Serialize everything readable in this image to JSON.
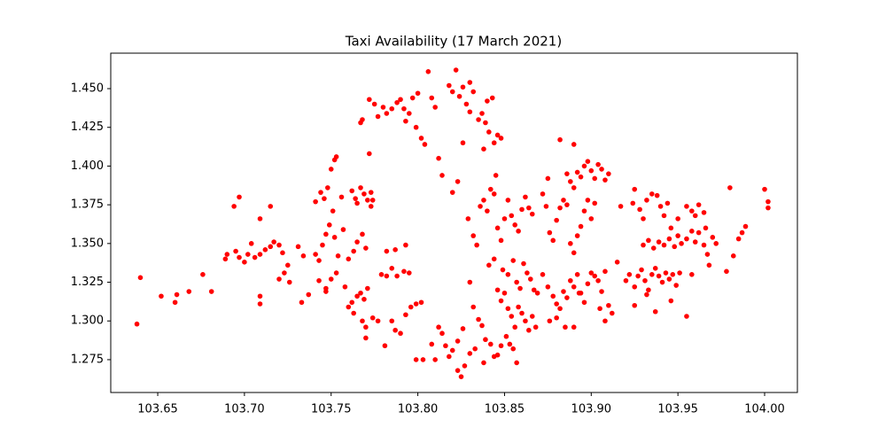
{
  "chart_data": {
    "type": "scatter",
    "title": "Taxi Availability (17 March 2021)",
    "color": "#ff0000",
    "xlim": [
      103.6229,
      104.0189
    ],
    "ylim": [
      1.2538,
      1.4729
    ],
    "xticks": [
      103.65,
      {
        "value": 103.7,
        "label": "103.70"
      },
      103.75,
      {
        "value": 103.8,
        "label": "103.80"
      },
      103.85,
      {
        "value": 103.9,
        "label": "103.90"
      },
      103.95,
      {
        "value": 104,
        "label": "104.00"
      }
    ],
    "yticks": [
      1.275,
      {
        "value": 1.3,
        "label": "1.300"
      },
      1.325,
      {
        "value": 1.35,
        "label": "1.350"
      },
      1.375,
      {
        "value": 1.4,
        "label": "1.400"
      },
      1.425,
      {
        "value": 1.45,
        "label": "1.450"
      }
    ],
    "x": [
      103.638,
      103.64,
      103.652,
      103.66,
      103.661,
      103.668,
      103.676,
      103.681,
      103.689,
      103.69,
      103.695,
      103.697,
      103.7,
      103.702,
      103.704,
      103.706,
      103.709,
      103.712,
      103.715,
      103.717,
      103.72,
      103.722,
      103.694,
      103.697,
      103.709,
      103.715,
      103.709,
      103.709,
      103.72,
      103.723,
      103.726,
      103.725,
      103.731,
      103.734,
      103.733,
      103.737,
      103.741,
      103.743,
      103.745,
      103.747,
      103.749,
      103.751,
      103.748,
      103.75,
      103.752,
      103.753,
      103.746,
      103.741,
      103.744,
      103.756,
      103.757,
      103.753,
      103.75,
      103.747,
      103.743,
      103.754,
      103.752,
      103.747,
      103.758,
      103.76,
      103.762,
      103.764,
      103.767,
      103.769,
      103.771,
      103.765,
      103.773,
      103.772,
      103.773,
      103.774,
      103.763,
      103.765,
      103.768,
      103.77,
      103.762,
      103.765,
      103.767,
      103.769,
      103.771,
      103.76,
      103.763,
      103.768,
      103.77,
      103.77,
      103.774,
      103.777,
      103.779,
      103.782,
      103.785,
      103.788,
      103.792,
      103.795,
      103.782,
      103.787,
      103.793,
      103.781,
      103.785,
      103.787,
      103.79,
      103.793,
      103.796,
      103.799,
      103.802,
      103.799,
      103.803,
      103.767,
      103.768,
      103.772,
      103.775,
      103.777,
      103.78,
      103.782,
      103.785,
      103.788,
      103.79,
      103.792,
      103.795,
      103.797,
      103.793,
      103.799,
      103.8,
      103.802,
      103.804,
      103.806,
      103.808,
      103.81,
      103.812,
      103.814,
      103.818,
      103.82,
      103.822,
      103.824,
      103.826,
      103.828,
      103.83,
      103.832,
      103.83,
      103.835,
      103.837,
      103.839,
      103.841,
      103.844,
      103.846,
      103.848,
      103.84,
      103.843,
      103.838,
      103.826,
      103.823,
      103.82,
      103.829,
      103.832,
      103.834,
      103.836,
      103.838,
      103.84,
      103.842,
      103.844,
      103.846,
      103.848,
      103.85,
      103.852,
      103.854,
      103.856,
      103.858,
      103.86,
      103.862,
      103.864,
      103.866,
      103.845,
      103.841,
      103.844,
      103.849,
      103.852,
      103.855,
      103.857,
      103.859,
      103.861,
      103.863,
      103.865,
      103.867,
      103.869,
      103.846,
      103.848,
      103.85,
      103.852,
      103.854,
      103.856,
      103.858,
      103.86,
      103.862,
      103.864,
      103.866,
      103.868,
      103.83,
      103.832,
      103.835,
      103.837,
      103.839,
      103.842,
      103.844,
      103.846,
      103.848,
      103.851,
      103.853,
      103.855,
      103.857,
      103.826,
      103.823,
      103.82,
      103.818,
      103.816,
      103.814,
      103.812,
      103.81,
      103.808,
      103.825,
      103.827,
      103.83,
      103.833,
      103.823,
      103.838,
      103.872,
      103.874,
      103.876,
      103.878,
      103.88,
      103.882,
      103.884,
      103.886,
      103.888,
      103.89,
      103.892,
      103.894,
      103.896,
      103.898,
      103.9,
      103.902,
      103.886,
      103.888,
      103.89,
      103.892,
      103.894,
      103.896,
      103.898,
      103.9,
      103.902,
      103.904,
      103.906,
      103.908,
      103.91,
      103.875,
      103.882,
      103.89,
      103.872,
      103.875,
      103.878,
      103.88,
      103.882,
      103.884,
      103.886,
      103.888,
      103.89,
      103.892,
      103.894,
      103.896,
      103.898,
      103.9,
      103.902,
      103.904,
      103.906,
      103.908,
      103.91,
      103.912,
      103.876,
      103.88,
      103.885,
      103.89,
      103.893,
      103.905,
      103.908,
      103.915,
      103.917,
      103.92,
      103.922,
      103.925,
      103.927,
      103.929,
      103.931,
      103.933,
      103.935,
      103.937,
      103.939,
      103.941,
      103.943,
      103.945,
      103.947,
      103.949,
      103.951,
      103.93,
      103.933,
      103.936,
      103.939,
      103.942,
      103.945,
      103.948,
      103.95,
      103.952,
      103.955,
      103.958,
      103.96,
      103.962,
      103.924,
      103.928,
      103.93,
      103.932,
      103.935,
      103.938,
      103.94,
      103.942,
      103.944,
      103.955,
      103.958,
      103.96,
      103.962,
      103.965,
      103.946,
      103.95,
      103.925,
      103.925,
      103.932,
      103.937,
      103.946,
      103.955,
      103.958,
      103.965,
      103.967,
      103.968,
      103.97,
      103.972,
      103.966,
      103.978,
      103.98,
      103.982,
      103.985,
      103.987,
      103.989,
      104.0,
      104.002,
      104.002
    ],
    "values": [
      1.298,
      1.328,
      1.316,
      1.312,
      1.317,
      1.319,
      1.33,
      1.319,
      1.34,
      1.343,
      1.345,
      1.341,
      1.338,
      1.343,
      1.35,
      1.341,
      1.343,
      1.346,
      1.348,
      1.351,
      1.349,
      1.344,
      1.374,
      1.38,
      1.366,
      1.374,
      1.311,
      1.316,
      1.327,
      1.331,
      1.325,
      1.336,
      1.348,
      1.342,
      1.312,
      1.317,
      1.343,
      1.339,
      1.349,
      1.356,
      1.362,
      1.371,
      1.386,
      1.398,
      1.404,
      1.406,
      1.379,
      1.377,
      1.383,
      1.38,
      1.359,
      1.331,
      1.327,
      1.321,
      1.326,
      1.342,
      1.354,
      1.319,
      1.322,
      1.34,
      1.384,
      1.379,
      1.386,
      1.382,
      1.378,
      1.376,
      1.374,
      1.408,
      1.383,
      1.378,
      1.345,
      1.351,
      1.356,
      1.347,
      1.312,
      1.316,
      1.318,
      1.314,
      1.321,
      1.309,
      1.305,
      1.3,
      1.289,
      1.296,
      1.302,
      1.3,
      1.33,
      1.329,
      1.334,
      1.329,
      1.332,
      1.331,
      1.345,
      1.346,
      1.349,
      1.284,
      1.3,
      1.294,
      1.292,
      1.304,
      1.309,
      1.311,
      1.312,
      1.275,
      1.275,
      1.428,
      1.43,
      1.443,
      1.44,
      1.432,
      1.438,
      1.434,
      1.437,
      1.441,
      1.443,
      1.437,
      1.434,
      1.444,
      1.429,
      1.425,
      1.447,
      1.418,
      1.414,
      1.461,
      1.444,
      1.438,
      1.405,
      1.394,
      1.452,
      1.448,
      1.462,
      1.445,
      1.451,
      1.44,
      1.454,
      1.448,
      1.435,
      1.43,
      1.434,
      1.428,
      1.422,
      1.415,
      1.42,
      1.418,
      1.442,
      1.444,
      1.411,
      1.415,
      1.39,
      1.383,
      1.366,
      1.355,
      1.349,
      1.374,
      1.378,
      1.371,
      1.385,
      1.382,
      1.36,
      1.352,
      1.366,
      1.378,
      1.368,
      1.362,
      1.358,
      1.372,
      1.38,
      1.373,
      1.369,
      1.394,
      1.336,
      1.34,
      1.333,
      1.33,
      1.339,
      1.325,
      1.321,
      1.337,
      1.331,
      1.327,
      1.32,
      1.318,
      1.32,
      1.313,
      1.318,
      1.308,
      1.303,
      1.296,
      1.309,
      1.305,
      1.3,
      1.294,
      1.303,
      1.296,
      1.325,
      1.309,
      1.301,
      1.297,
      1.288,
      1.285,
      1.277,
      1.278,
      1.284,
      1.29,
      1.285,
      1.282,
      1.273,
      1.295,
      1.287,
      1.281,
      1.277,
      1.284,
      1.292,
      1.296,
      1.275,
      1.285,
      1.264,
      1.271,
      1.279,
      1.282,
      1.268,
      1.273,
      1.382,
      1.374,
      1.357,
      1.352,
      1.365,
      1.373,
      1.378,
      1.375,
      1.35,
      1.344,
      1.355,
      1.361,
      1.371,
      1.378,
      1.366,
      1.376,
      1.395,
      1.39,
      1.386,
      1.396,
      1.393,
      1.4,
      1.403,
      1.397,
      1.392,
      1.401,
      1.398,
      1.391,
      1.395,
      1.392,
      1.417,
      1.414,
      1.33,
      1.322,
      1.316,
      1.311,
      1.308,
      1.319,
      1.315,
      1.326,
      1.322,
      1.33,
      1.318,
      1.312,
      1.324,
      1.331,
      1.329,
      1.326,
      1.319,
      1.332,
      1.31,
      1.305,
      1.3,
      1.302,
      1.296,
      1.296,
      1.318,
      1.308,
      1.3,
      1.338,
      1.374,
      1.326,
      1.33,
      1.322,
      1.329,
      1.333,
      1.326,
      1.32,
      1.33,
      1.334,
      1.329,
      1.325,
      1.331,
      1.327,
      1.33,
      1.323,
      1.331,
      1.349,
      1.352,
      1.347,
      1.351,
      1.349,
      1.353,
      1.348,
      1.355,
      1.35,
      1.353,
      1.358,
      1.351,
      1.357,
      1.376,
      1.372,
      1.366,
      1.378,
      1.382,
      1.381,
      1.374,
      1.368,
      1.376,
      1.374,
      1.371,
      1.368,
      1.375,
      1.37,
      1.36,
      1.366,
      1.385,
      1.31,
      1.317,
      1.306,
      1.313,
      1.303,
      1.33,
      1.349,
      1.343,
      1.336,
      1.354,
      1.35,
      1.36,
      1.332,
      1.386,
      1.342,
      1.353,
      1.357,
      1.361,
      1.385,
      1.377,
      1.373
    ]
  }
}
